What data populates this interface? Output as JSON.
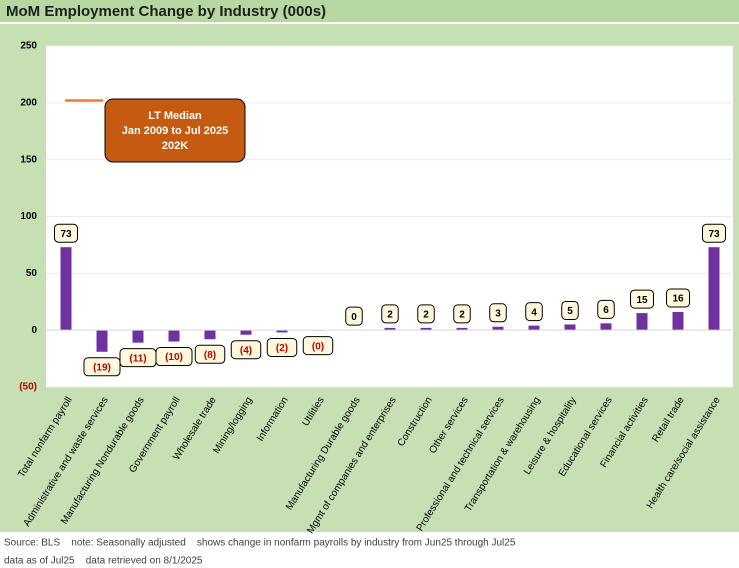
{
  "chart_data": {
    "type": "bar",
    "title": "MoM Employment Change by Industry (000s)",
    "categories": [
      "Total nonfarm payroll",
      "Administrative and waste services",
      "Manufacturing Nondurable goods",
      "Government payroll",
      "Wholesale trade",
      "Mining/logging",
      "Information",
      "Utilities",
      "Manufacturing Durable goods",
      "Mgmt of companies and enterprises",
      "Construction",
      "Other services",
      "Professional and technical services",
      "Transportation & warehousing",
      "Leisure & hospitality",
      "Educational services",
      "Financial activities",
      "Retail trade",
      "Health care/social assistance"
    ],
    "values": [
      73,
      -19,
      -11,
      -10,
      -8,
      -4,
      -2,
      -0.4,
      0,
      2,
      2,
      2,
      3,
      4,
      5,
      6,
      15,
      16,
      73
    ],
    "value_labels": [
      "73",
      "(19)",
      "(11)",
      "(10)",
      "(8)",
      "(4)",
      "(2)",
      "(0)",
      "0",
      "2",
      "2",
      "2",
      "3",
      "4",
      "5",
      "6",
      "15",
      "16",
      "73"
    ],
    "color": "#7030a0",
    "ylim": [
      -50,
      250
    ],
    "yticks": [
      {
        "value": -50,
        "label": "(50)"
      },
      0,
      50,
      100,
      150,
      200,
      250
    ],
    "grid": true,
    "annotation": {
      "value": 202,
      "color": "#c55a11",
      "lines": [
        "LT Median",
        "Jan 2009 to Jul 2025",
        "202K"
      ]
    },
    "footnotes": [
      "Source: BLS    note: Seasonally adjusted    shows change in nonfarm payrolls by industry from Jun25 through Jul25",
      "data as of Jul25    data retrieved on 8/1/2025"
    ]
  }
}
